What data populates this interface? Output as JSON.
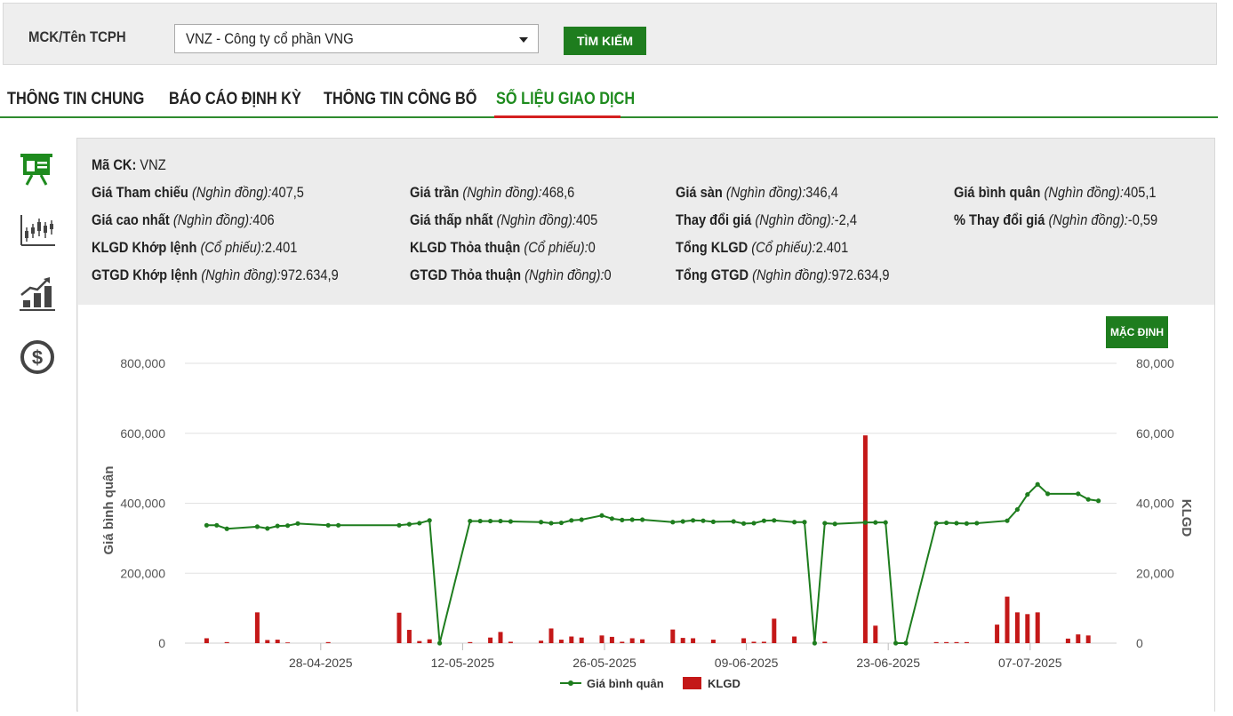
{
  "search": {
    "label": "MCK/Tên TCPH",
    "selected": "VNZ - Công ty cổ phần VNG",
    "button": "TÌM KIẾM"
  },
  "tabs": [
    {
      "label": "THÔNG TIN CHUNG"
    },
    {
      "label": "BÁO CÁO ĐỊNH KỲ"
    },
    {
      "label": "THÔNG TIN CÔNG BỐ"
    },
    {
      "label": "SỐ LIỆU GIAO DỊCH"
    }
  ],
  "side_icons": [
    "presentation-icon",
    "candlestick-chart-icon",
    "growth-chart-icon",
    "dollar-coin-icon"
  ],
  "info": {
    "ma_ck_label": "Mã CK:",
    "ma_ck_value": "VNZ",
    "rows": [
      [
        {
          "label": "Giá Tham chiếu",
          "unit": "(Nghìn đồng):",
          "value": "407,5"
        },
        {
          "label": "Giá trần",
          "unit": "(Nghìn đồng):",
          "value": "468,6"
        },
        {
          "label": "Giá sàn",
          "unit": "(Nghìn đồng):",
          "value": "346,4"
        },
        {
          "label": "Giá bình quân",
          "unit": "(Nghìn đồng):",
          "value": "405,1"
        }
      ],
      [
        {
          "label": "Giá cao nhất",
          "unit": "(Nghìn đồng):",
          "value": "406"
        },
        {
          "label": "Giá thấp nhất",
          "unit": "(Nghìn đồng):",
          "value": "405"
        },
        {
          "label": "Thay đổi giá",
          "unit": "(Nghìn đồng):",
          "value": "-2,4"
        },
        {
          "label": "% Thay đổi giá",
          "unit": "(Nghìn đồng):",
          "value": "-0,59"
        }
      ],
      [
        {
          "label": "KLGD Khớp lệnh",
          "unit": "(Cổ phiếu):",
          "value": "2.401"
        },
        {
          "label": "KLGD Thỏa thuận",
          "unit": "(Cổ phiếu):",
          "value": "0"
        },
        {
          "label": "Tổng KLGD",
          "unit": "(Cổ phiếu):",
          "value": "2.401"
        }
      ],
      [
        {
          "label": "GTGD Khớp lệnh",
          "unit": "(Nghìn đồng):",
          "value": "972.634,9"
        },
        {
          "label": "GTGD Thỏa thuận",
          "unit": "(Nghìn đồng):",
          "value": "0"
        },
        {
          "label": "Tổng GTGD",
          "unit": "(Nghìn đồng):",
          "value": "972.634,9"
        }
      ]
    ]
  },
  "default_button": "MẶC ĐỊNH",
  "colors": {
    "accent": "#1e7d1e",
    "price_line": "#1e7d1e",
    "volume_bar": "#c41818",
    "tab_underline": "#d42020"
  },
  "chart_data": {
    "type": "bar+line",
    "x_ticks": [
      "28-04-2025",
      "12-05-2025",
      "26-05-2025",
      "09-06-2025",
      "23-06-2025",
      "07-07-2025"
    ],
    "y_left": {
      "label": "Giá bình quân",
      "ticks": [
        "800,000",
        "600,000",
        "400,000",
        "200,000",
        "0"
      ],
      "range": [
        0,
        800000
      ]
    },
    "y_right": {
      "label": "KLGD",
      "ticks": [
        "80,000",
        "60,000",
        "40,000",
        "20,000",
        "0"
      ],
      "range": [
        0,
        80000
      ]
    },
    "legend": [
      {
        "name": "Giá bình quân",
        "type": "line"
      },
      {
        "name": "KLGD",
        "type": "bar"
      }
    ],
    "price_series": {
      "name": "Giá bình quân",
      "points": [
        [
          1,
          337000
        ],
        [
          2,
          337000
        ],
        [
          3,
          327000
        ],
        [
          6,
          333000
        ],
        [
          7,
          328000
        ],
        [
          8,
          335000
        ],
        [
          9,
          336000
        ],
        [
          10,
          342000
        ],
        [
          13,
          337000
        ],
        [
          14,
          337000
        ],
        [
          20,
          337000
        ],
        [
          21,
          340000
        ],
        [
          22,
          343000
        ],
        [
          23,
          351000
        ],
        [
          24,
          0
        ],
        [
          27,
          349000
        ],
        [
          28,
          349000
        ],
        [
          29,
          349000
        ],
        [
          30,
          349000
        ],
        [
          31,
          348000
        ],
        [
          34,
          346000
        ],
        [
          35,
          343000
        ],
        [
          36,
          344000
        ],
        [
          37,
          351000
        ],
        [
          38,
          353000
        ],
        [
          40,
          365000
        ],
        [
          41,
          356000
        ],
        [
          42,
          352000
        ],
        [
          43,
          353000
        ],
        [
          44,
          353000
        ],
        [
          47,
          346000
        ],
        [
          48,
          348000
        ],
        [
          49,
          351000
        ],
        [
          50,
          350000
        ],
        [
          51,
          347000
        ],
        [
          53,
          348000
        ],
        [
          54,
          342000
        ],
        [
          55,
          343000
        ],
        [
          56,
          350000
        ],
        [
          57,
          351000
        ],
        [
          59,
          346000
        ],
        [
          60,
          346000
        ],
        [
          61,
          0
        ],
        [
          62,
          343000
        ],
        [
          63,
          341000
        ],
        [
          66,
          345000
        ],
        [
          67,
          345000
        ],
        [
          68,
          345000
        ],
        [
          69,
          0
        ],
        [
          70,
          0
        ],
        [
          73,
          343000
        ],
        [
          74,
          344000
        ],
        [
          75,
          343000
        ],
        [
          76,
          342000
        ],
        [
          77,
          343000
        ],
        [
          80,
          350000
        ],
        [
          81,
          382000
        ],
        [
          82,
          425000
        ],
        [
          83,
          454000
        ],
        [
          84,
          427000
        ],
        [
          87,
          427000
        ],
        [
          88,
          411000
        ],
        [
          89,
          407000
        ]
      ]
    },
    "volume_series": {
      "name": "KLGD",
      "points": [
        [
          1,
          1400
        ],
        [
          3,
          300
        ],
        [
          6,
          8800
        ],
        [
          7,
          900
        ],
        [
          8,
          1000
        ],
        [
          9,
          200
        ],
        [
          13,
          300
        ],
        [
          20,
          8700
        ],
        [
          21,
          3800
        ],
        [
          22,
          600
        ],
        [
          23,
          1100
        ],
        [
          27,
          300
        ],
        [
          29,
          1600
        ],
        [
          30,
          3200
        ],
        [
          31,
          400
        ],
        [
          34,
          700
        ],
        [
          35,
          4200
        ],
        [
          36,
          1000
        ],
        [
          37,
          1900
        ],
        [
          38,
          1600
        ],
        [
          40,
          2200
        ],
        [
          41,
          1800
        ],
        [
          42,
          400
        ],
        [
          43,
          1400
        ],
        [
          44,
          1100
        ],
        [
          47,
          3900
        ],
        [
          48,
          1500
        ],
        [
          49,
          1400
        ],
        [
          51,
          1000
        ],
        [
          54,
          1400
        ],
        [
          55,
          400
        ],
        [
          56,
          400
        ],
        [
          57,
          7000
        ],
        [
          59,
          1900
        ],
        [
          62,
          400
        ],
        [
          66,
          59400
        ],
        [
          67,
          5000
        ],
        [
          73,
          300
        ],
        [
          74,
          300
        ],
        [
          75,
          300
        ],
        [
          76,
          300
        ],
        [
          79,
          5300
        ],
        [
          80,
          13300
        ],
        [
          81,
          8800
        ],
        [
          82,
          8300
        ],
        [
          83,
          8800
        ],
        [
          86,
          1300
        ],
        [
          87,
          2500
        ],
        [
          88,
          2200
        ]
      ]
    }
  }
}
